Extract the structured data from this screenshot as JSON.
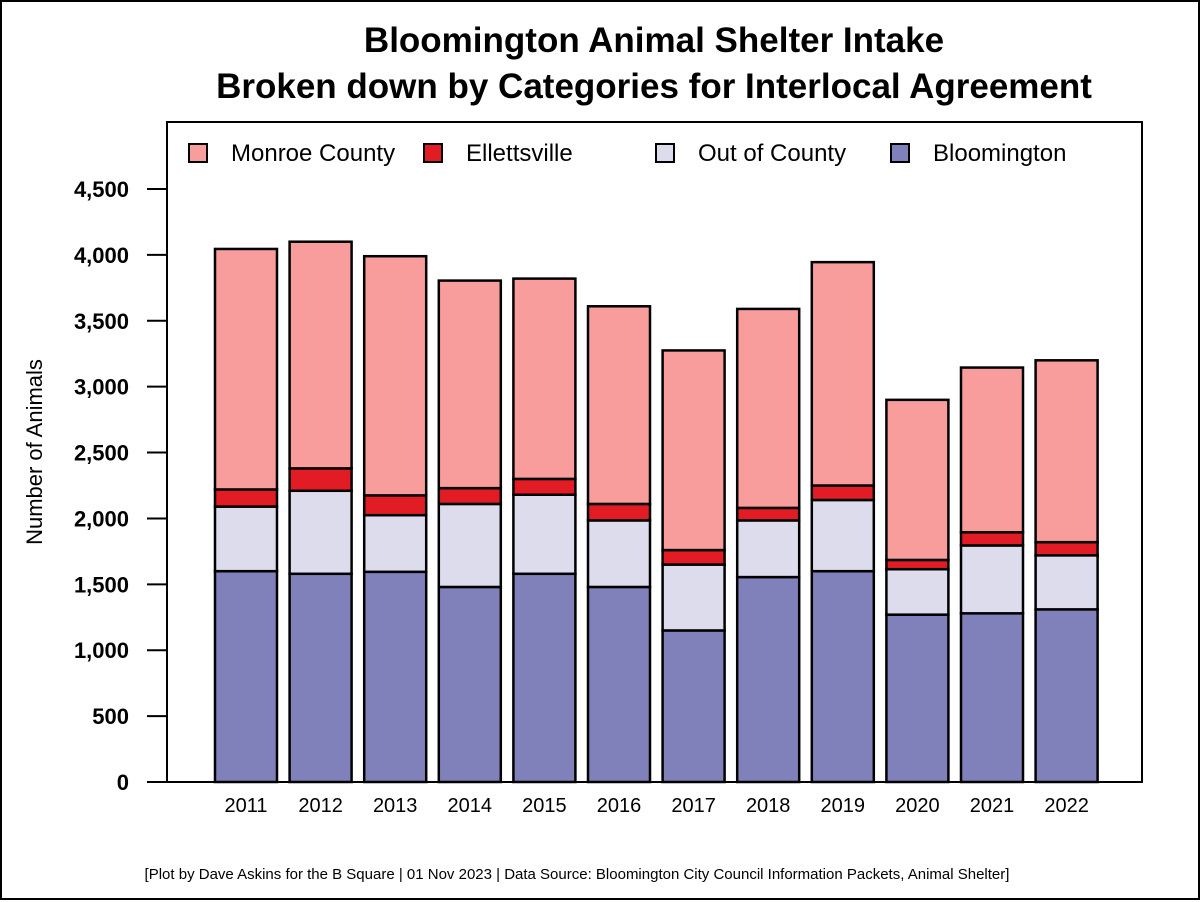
{
  "chart_data": {
    "type": "bar",
    "stacked": true,
    "title": "Bloomington Animal Shelter Intake",
    "subtitle": "Broken down by Categories for Interlocal Agreement",
    "ylabel": "Number of Animals",
    "xlabel": "",
    "ylim": [
      0,
      4500
    ],
    "yticks": [
      0,
      500,
      1000,
      1500,
      2000,
      2500,
      3000,
      3500,
      4000,
      4500
    ],
    "ytick_labels": [
      "0",
      "500",
      "1,000",
      "1,500",
      "2,000",
      "2,500",
      "3,000",
      "3,500",
      "4,000",
      "4,500"
    ],
    "categories": [
      "2011",
      "2012",
      "2013",
      "2014",
      "2015",
      "2016",
      "2017",
      "2018",
      "2019",
      "2020",
      "2021",
      "2022"
    ],
    "series": [
      {
        "name": "Bloomington",
        "color": "#8080bb",
        "values": [
          1600,
          1580,
          1595,
          1480,
          1580,
          1480,
          1150,
          1555,
          1600,
          1270,
          1280,
          1310
        ]
      },
      {
        "name": "Out of County",
        "color": "#dcdcec",
        "values": [
          490,
          630,
          430,
          630,
          600,
          505,
          500,
          430,
          540,
          345,
          515,
          410
        ]
      },
      {
        "name": "Ellettsville",
        "color": "#e21c24",
        "values": [
          130,
          170,
          150,
          120,
          120,
          125,
          110,
          95,
          110,
          70,
          100,
          100
        ]
      },
      {
        "name": "Monroe County",
        "color": "#f99c9c",
        "values": [
          1825,
          1720,
          1815,
          1575,
          1520,
          1500,
          1515,
          1510,
          1695,
          1215,
          1250,
          1380
        ]
      }
    ],
    "legend": {
      "position": "top",
      "order": [
        "Monroe County",
        "Ellettsville",
        "Out of County",
        "Bloomington"
      ]
    },
    "grid": false,
    "caption": "[Plot by Dave Askins for the B Square | 01 Nov 2023 | Data Source: Bloomington City Council Information Packets, Animal Shelter]"
  }
}
